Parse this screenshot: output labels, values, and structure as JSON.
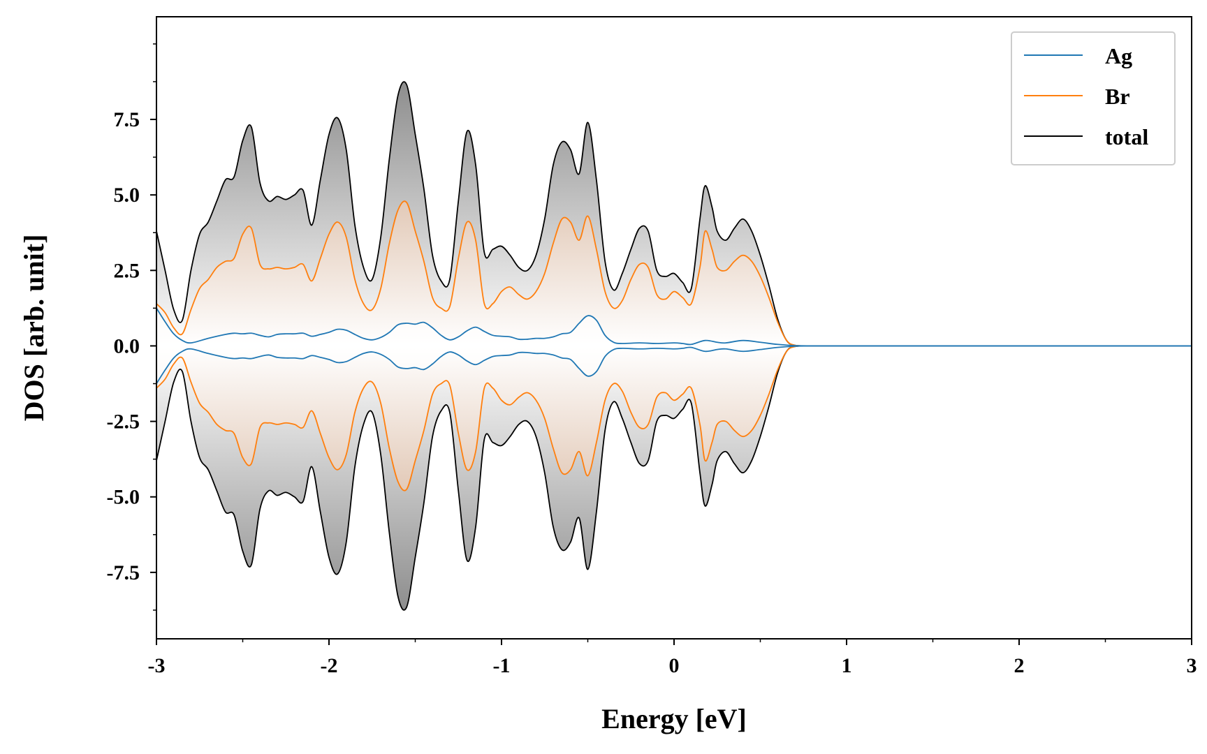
{
  "chart_data": {
    "type": "line",
    "xlabel": "Energy [eV]",
    "ylabel": "DOS [arb. unit]",
    "xlim": [
      -3,
      3
    ],
    "ylim": [
      -9.7,
      10.9
    ],
    "xticks": [
      "-3",
      "-2",
      "-1",
      "0",
      "1",
      "2",
      "3"
    ],
    "yticks": [
      "-7.5",
      "-5.0",
      "-2.5",
      "0.0",
      "2.5",
      "5.0",
      "7.5"
    ],
    "grid": false,
    "legend_position": "top-right",
    "mirrored": true,
    "fill_gradient": [
      "#ffffff",
      "#8a8a8a"
    ],
    "br_fill_gradient": [
      "#ffffff",
      "#c99a78"
    ],
    "series": [
      {
        "name": "Ag",
        "color": "#1f77b4",
        "x": [
          -3.0,
          -2.95,
          -2.9,
          -2.85,
          -2.8,
          -2.7,
          -2.6,
          -2.55,
          -2.5,
          -2.45,
          -2.4,
          -2.35,
          -2.3,
          -2.25,
          -2.2,
          -2.15,
          -2.1,
          -2.05,
          -2.0,
          -1.95,
          -1.9,
          -1.85,
          -1.8,
          -1.75,
          -1.7,
          -1.65,
          -1.6,
          -1.55,
          -1.5,
          -1.45,
          -1.4,
          -1.35,
          -1.3,
          -1.25,
          -1.2,
          -1.15,
          -1.1,
          -1.05,
          -1.0,
          -0.95,
          -0.9,
          -0.85,
          -0.8,
          -0.75,
          -0.7,
          -0.65,
          -0.6,
          -0.55,
          -0.5,
          -0.45,
          -0.4,
          -0.35,
          -0.3,
          -0.2,
          -0.1,
          0.0,
          0.05,
          0.1,
          0.18,
          0.25,
          0.3,
          0.4,
          0.5,
          0.6,
          0.7,
          0.8,
          1.0,
          2.0,
          3.0
        ],
        "values": [
          1.25,
          0.8,
          0.4,
          0.18,
          0.1,
          0.25,
          0.38,
          0.42,
          0.4,
          0.42,
          0.35,
          0.3,
          0.38,
          0.4,
          0.4,
          0.42,
          0.32,
          0.38,
          0.45,
          0.55,
          0.52,
          0.38,
          0.25,
          0.2,
          0.28,
          0.45,
          0.7,
          0.75,
          0.72,
          0.78,
          0.6,
          0.35,
          0.2,
          0.3,
          0.5,
          0.62,
          0.48,
          0.35,
          0.32,
          0.3,
          0.22,
          0.22,
          0.25,
          0.25,
          0.3,
          0.4,
          0.45,
          0.75,
          1.0,
          0.85,
          0.35,
          0.12,
          0.08,
          0.1,
          0.08,
          0.1,
          0.08,
          0.05,
          0.18,
          0.12,
          0.1,
          0.18,
          0.12,
          0.05,
          0.01,
          0.0,
          0.0,
          0.0,
          0.0
        ]
      },
      {
        "name": "Br",
        "color": "#ff7f0e",
        "x": [
          -3.0,
          -2.95,
          -2.9,
          -2.85,
          -2.8,
          -2.75,
          -2.7,
          -2.65,
          -2.6,
          -2.55,
          -2.5,
          -2.45,
          -2.4,
          -2.35,
          -2.3,
          -2.25,
          -2.2,
          -2.15,
          -2.1,
          -2.05,
          -2.0,
          -1.95,
          -1.9,
          -1.85,
          -1.8,
          -1.75,
          -1.7,
          -1.65,
          -1.6,
          -1.55,
          -1.5,
          -1.45,
          -1.4,
          -1.35,
          -1.3,
          -1.25,
          -1.2,
          -1.15,
          -1.1,
          -1.05,
          -1.0,
          -0.95,
          -0.9,
          -0.85,
          -0.8,
          -0.75,
          -0.7,
          -0.65,
          -0.6,
          -0.55,
          -0.5,
          -0.45,
          -0.4,
          -0.35,
          -0.3,
          -0.25,
          -0.2,
          -0.15,
          -0.1,
          -0.05,
          0.0,
          0.05,
          0.1,
          0.15,
          0.18,
          0.22,
          0.25,
          0.3,
          0.35,
          0.4,
          0.45,
          0.5,
          0.55,
          0.6,
          0.65,
          0.7,
          0.8,
          1.0,
          2.0,
          3.0
        ],
        "values": [
          1.4,
          1.1,
          0.6,
          0.4,
          1.2,
          1.9,
          2.2,
          2.6,
          2.8,
          2.9,
          3.7,
          3.9,
          2.7,
          2.55,
          2.6,
          2.55,
          2.6,
          2.7,
          2.15,
          2.9,
          3.7,
          4.1,
          3.6,
          2.2,
          1.4,
          1.2,
          1.9,
          3.4,
          4.5,
          4.75,
          3.8,
          2.8,
          1.6,
          1.25,
          1.3,
          2.9,
          4.1,
          3.5,
          1.4,
          1.4,
          1.8,
          1.95,
          1.7,
          1.55,
          1.8,
          2.4,
          3.4,
          4.2,
          4.1,
          3.5,
          4.3,
          3.2,
          1.8,
          1.25,
          1.5,
          2.2,
          2.7,
          2.6,
          1.7,
          1.55,
          1.8,
          1.6,
          1.4,
          2.6,
          3.8,
          3.2,
          2.6,
          2.5,
          2.8,
          3.0,
          2.8,
          2.3,
          1.6,
          0.8,
          0.2,
          0.02,
          0.0,
          0.0,
          0.0,
          0.0
        ]
      },
      {
        "name": "total",
        "color": "#000000",
        "x": [
          -3.0,
          -2.95,
          -2.9,
          -2.85,
          -2.8,
          -2.75,
          -2.7,
          -2.65,
          -2.6,
          -2.55,
          -2.5,
          -2.45,
          -2.4,
          -2.35,
          -2.3,
          -2.25,
          -2.2,
          -2.15,
          -2.1,
          -2.05,
          -2.0,
          -1.95,
          -1.9,
          -1.85,
          -1.8,
          -1.75,
          -1.7,
          -1.65,
          -1.6,
          -1.55,
          -1.5,
          -1.45,
          -1.4,
          -1.35,
          -1.3,
          -1.25,
          -1.2,
          -1.15,
          -1.1,
          -1.05,
          -1.0,
          -0.95,
          -0.9,
          -0.85,
          -0.8,
          -0.75,
          -0.7,
          -0.65,
          -0.6,
          -0.55,
          -0.5,
          -0.45,
          -0.4,
          -0.35,
          -0.3,
          -0.25,
          -0.2,
          -0.15,
          -0.1,
          -0.05,
          0.0,
          0.05,
          0.1,
          0.15,
          0.18,
          0.22,
          0.25,
          0.3,
          0.35,
          0.4,
          0.45,
          0.5,
          0.55,
          0.6,
          0.65,
          0.7,
          0.8,
          1.0,
          2.0,
          3.0
        ],
        "values": [
          3.8,
          2.5,
          1.2,
          0.85,
          2.5,
          3.7,
          4.1,
          4.8,
          5.5,
          5.6,
          6.8,
          7.25,
          5.4,
          4.8,
          4.95,
          4.85,
          5.0,
          5.15,
          4.0,
          5.5,
          7.0,
          7.55,
          6.5,
          4.0,
          2.6,
          2.2,
          3.6,
          6.2,
          8.3,
          8.65,
          7.0,
          5.2,
          3.0,
          2.15,
          2.2,
          4.8,
          7.1,
          6.0,
          3.1,
          3.2,
          3.3,
          3.0,
          2.6,
          2.5,
          3.0,
          4.2,
          6.0,
          6.75,
          6.5,
          5.7,
          7.4,
          5.5,
          2.8,
          1.85,
          2.4,
          3.2,
          3.9,
          3.8,
          2.5,
          2.3,
          2.4,
          2.1,
          1.9,
          4.2,
          5.3,
          4.6,
          3.8,
          3.5,
          3.9,
          4.2,
          3.8,
          3.0,
          2.0,
          0.9,
          0.2,
          0.02,
          0.0,
          0.0,
          0.0,
          0.0
        ]
      }
    ]
  }
}
